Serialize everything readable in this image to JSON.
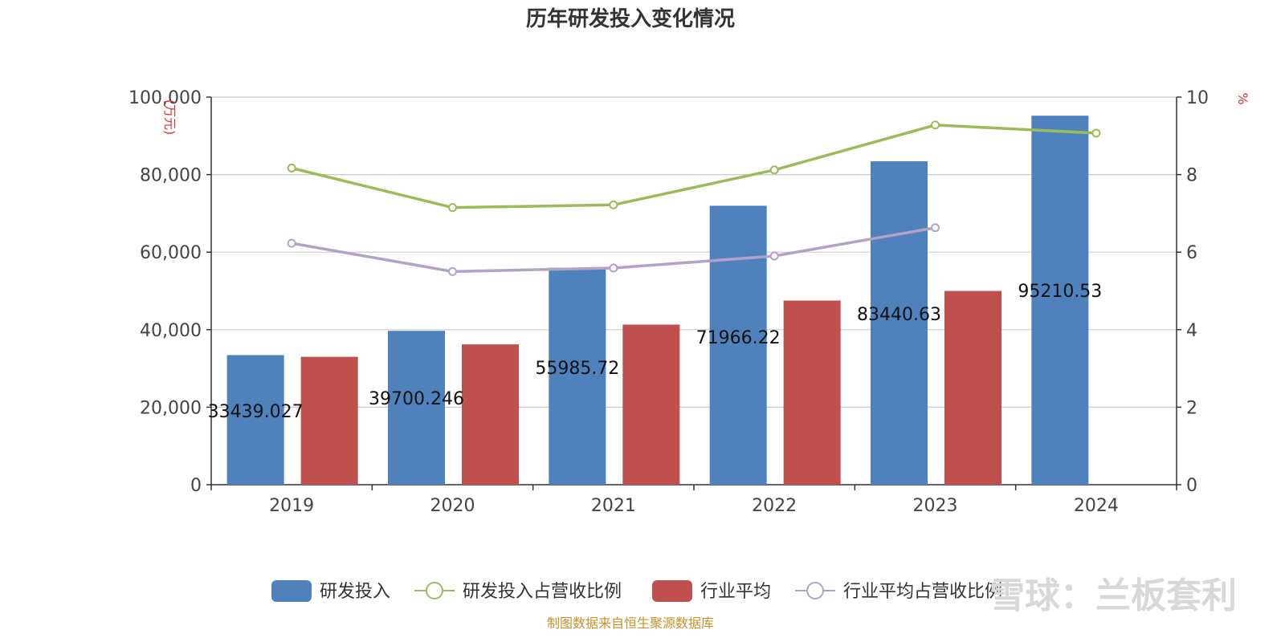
{
  "chart_data": {
    "type": "bar",
    "title": "历年研发投入变化情况",
    "categories": [
      "2019",
      "2020",
      "2021",
      "2022",
      "2023",
      "2024"
    ],
    "y_left": {
      "unit": "(万元)",
      "min": 0,
      "max": 100000,
      "ticks": [
        "0",
        "20,000",
        "40,000",
        "60,000",
        "80,000",
        "100,000"
      ]
    },
    "y_right": {
      "unit": "%",
      "min": 0,
      "max": 10,
      "ticks": [
        "0",
        "2",
        "4",
        "6",
        "8",
        "10"
      ]
    },
    "grid": true,
    "legend_position": "bottom",
    "series": [
      {
        "name": "研发投入",
        "kind": "bar",
        "axis": "left",
        "color": "#4f81bd",
        "values": [
          33439.027,
          39700.246,
          55985.72,
          71966.22,
          83440.63,
          95210.53
        ],
        "labels": [
          "33439.027",
          "39700.246",
          "55985.72",
          "71966.22",
          "83440.63",
          "95210.53"
        ]
      },
      {
        "name": "研发投入占营收比例",
        "kind": "line",
        "axis": "right",
        "color": "#9bbb59",
        "values": [
          8.17,
          7.15,
          7.22,
          8.12,
          9.28,
          9.07
        ]
      },
      {
        "name": "行业平均",
        "kind": "bar",
        "axis": "left",
        "color": "#c0504d",
        "values": [
          33000,
          36200,
          41300,
          47500,
          50000,
          null
        ]
      },
      {
        "name": "行业平均占营收比例",
        "kind": "line",
        "axis": "right",
        "color": "#b3a2c7",
        "values": [
          6.23,
          5.5,
          5.59,
          5.9,
          6.63,
          null
        ]
      }
    ]
  },
  "source_note": "制图数据来自恒生聚源数据库",
  "watermark": "雪球：兰板套利"
}
